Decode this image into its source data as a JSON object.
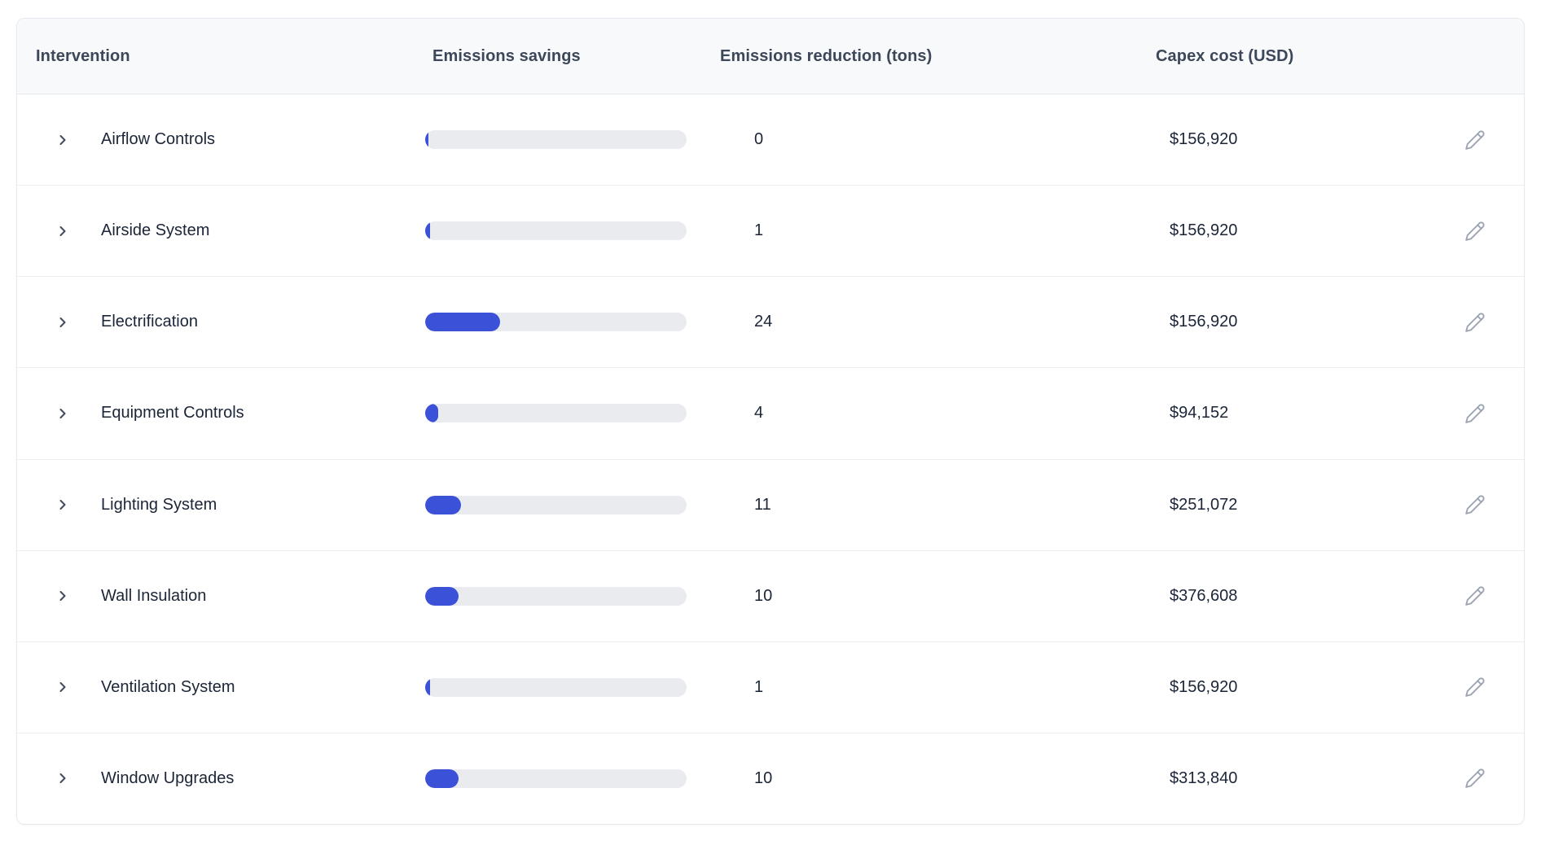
{
  "table": {
    "columns": [
      {
        "label": "Intervention"
      },
      {
        "label": "Emissions savings"
      },
      {
        "label": "Emissions reduction (tons)"
      },
      {
        "label": "Capex cost (USD)"
      }
    ],
    "rows": [
      {
        "name": "Airflow Controls",
        "savings_pct": 1.2,
        "reduction_tons": "0",
        "capex": "$156,920"
      },
      {
        "name": "Airside System",
        "savings_pct": 1.9,
        "reduction_tons": "1",
        "capex": "$156,920"
      },
      {
        "name": "Electrification",
        "savings_pct": 28.7,
        "reduction_tons": "24",
        "capex": "$156,920"
      },
      {
        "name": "Equipment Controls",
        "savings_pct": 5.0,
        "reduction_tons": "4",
        "capex": "$94,152"
      },
      {
        "name": "Lighting System",
        "savings_pct": 13.7,
        "reduction_tons": "11",
        "capex": "$251,072"
      },
      {
        "name": "Wall Insulation",
        "savings_pct": 12.8,
        "reduction_tons": "10",
        "capex": "$376,608"
      },
      {
        "name": "Ventilation System",
        "savings_pct": 1.9,
        "reduction_tons": "1",
        "capex": "$156,920"
      },
      {
        "name": "Window Upgrades",
        "savings_pct": 12.8,
        "reduction_tons": "10",
        "capex": "$313,840"
      }
    ]
  },
  "icons": {
    "expand": "chevron-right-icon",
    "edit": "pencil-icon"
  },
  "colors": {
    "bar-fill": "#3b52d8",
    "bar-track": "#e9ebef",
    "header-bg": "#f8f9fb",
    "border": "#e7e9ee",
    "row-divider": "#edeff2",
    "text-primary": "#1b2537",
    "text-header": "#3c4759",
    "icon-muted": "#9aa3b1",
    "icon-chevron": "#414b5a"
  }
}
